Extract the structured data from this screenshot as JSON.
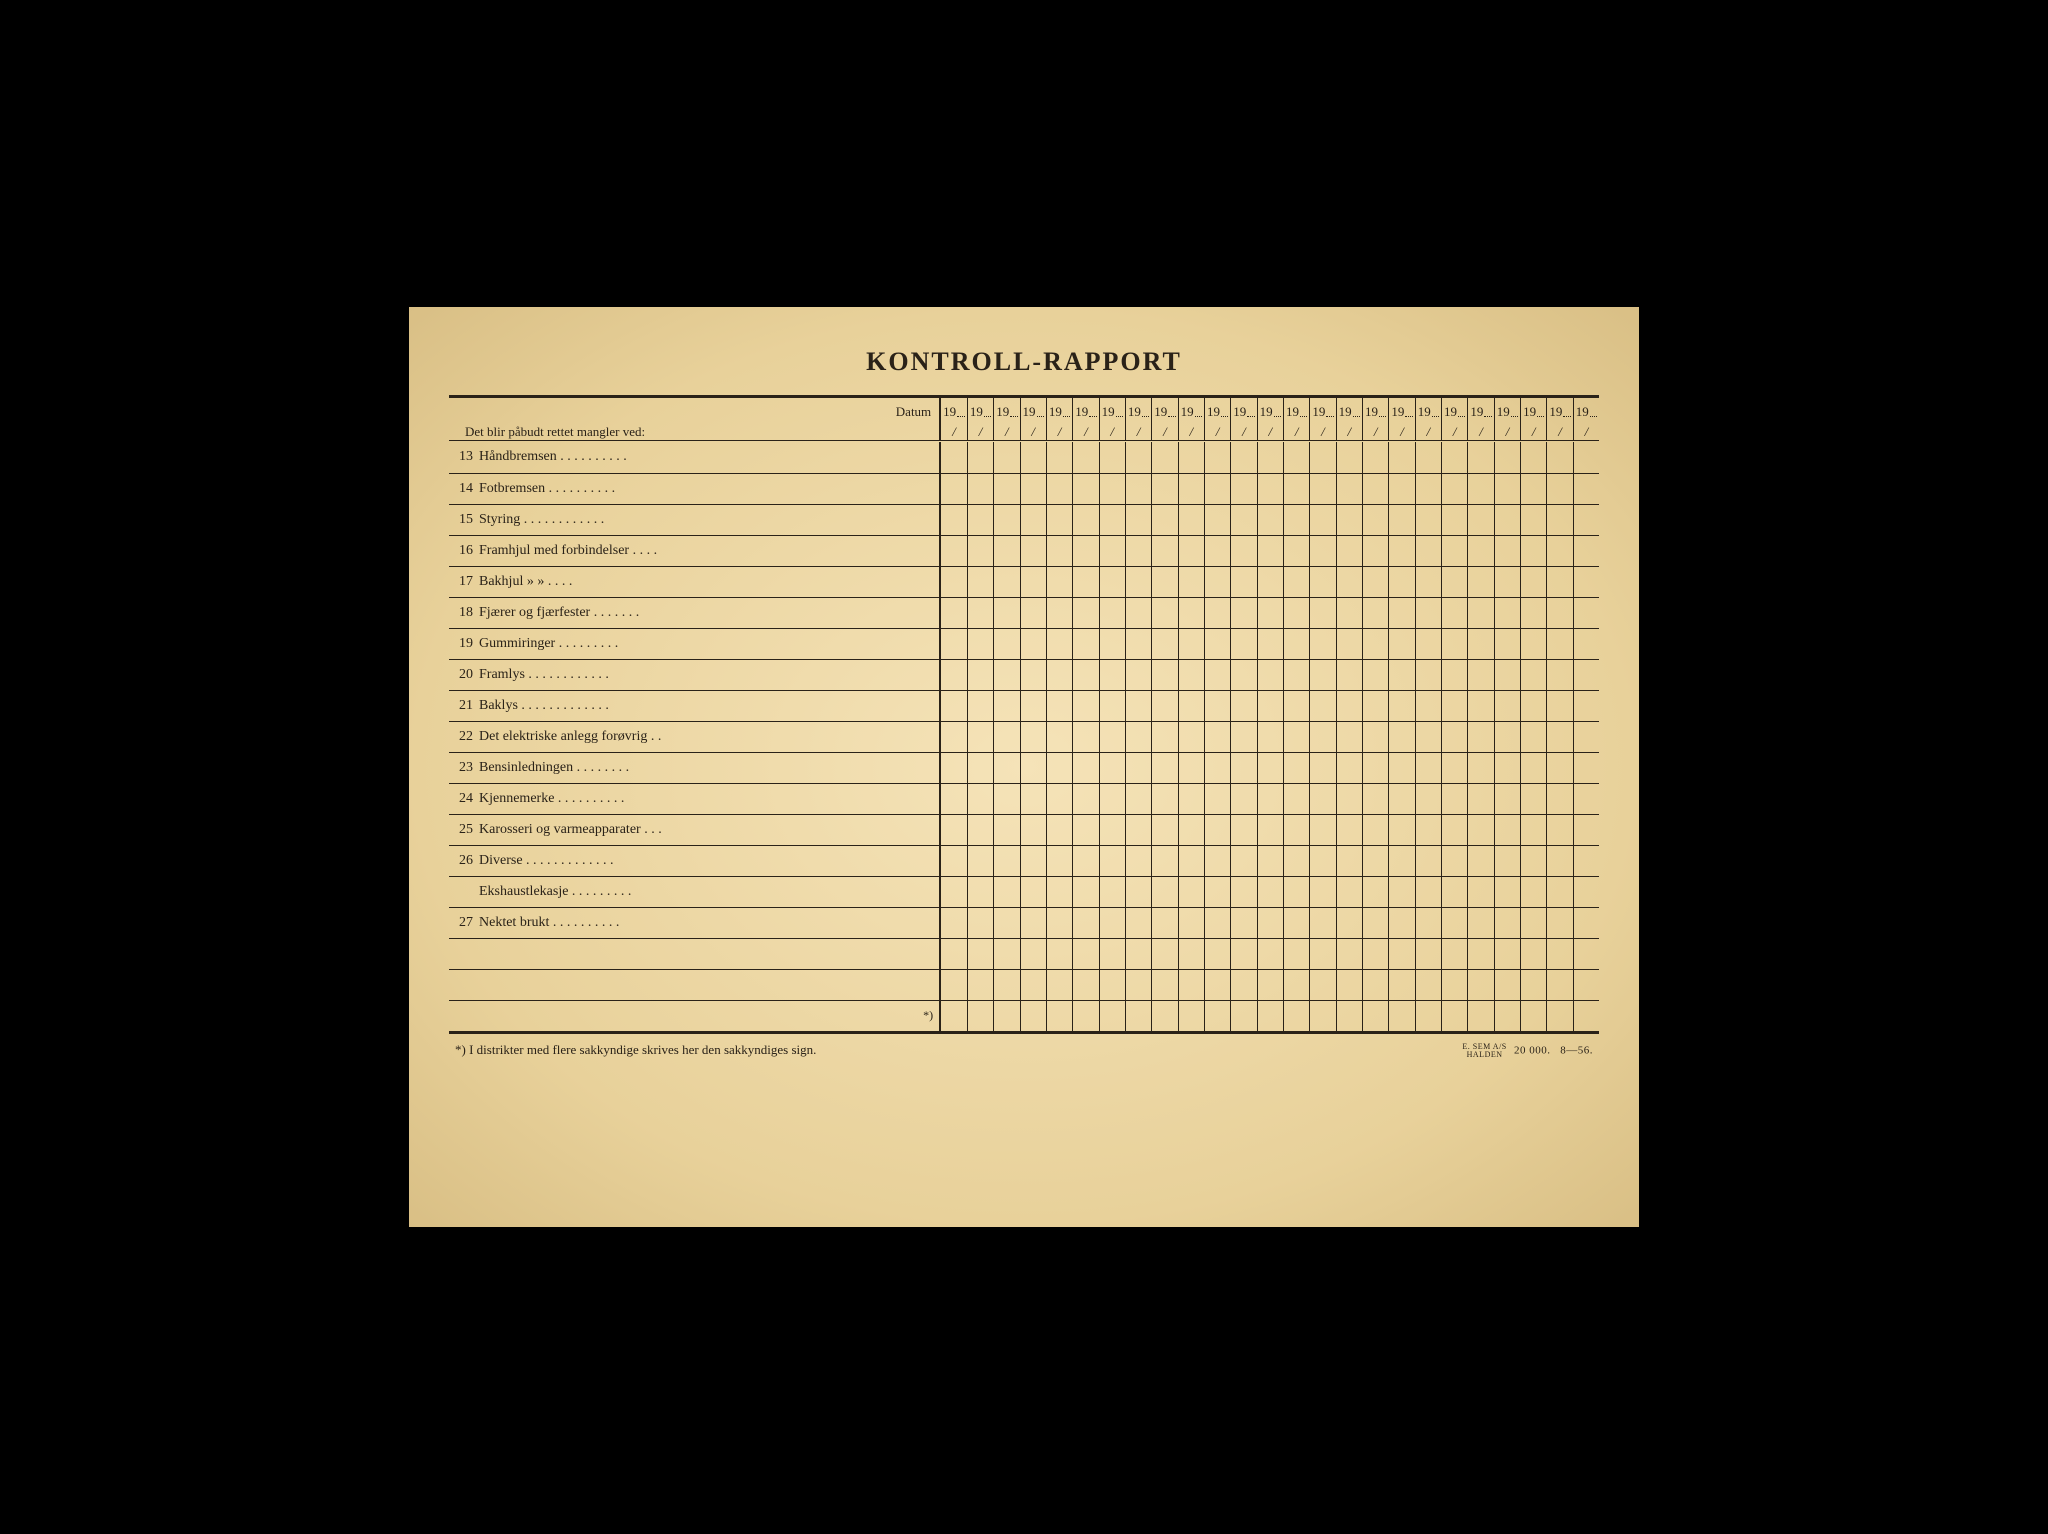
{
  "title": "KONTROLL-RAPPORT",
  "header": {
    "datum_label": "Datum",
    "year_prefix": "19",
    "sub_label": "Det blir påbudt rettet mangler ved:",
    "slash": "/",
    "num_date_cols": 25
  },
  "rows": [
    {
      "num": "13",
      "label": "Håndbremsen",
      "dots": 10
    },
    {
      "num": "14",
      "label": "Fotbremsen",
      "dots": 10
    },
    {
      "num": "15",
      "label": "Styring",
      "dots": 12
    },
    {
      "num": "16",
      "label": "Framhjul med forbindelser",
      "dots": 4
    },
    {
      "num": "17",
      "label": "Bakhjul      »           »",
      "dots": 4,
      "special": true
    },
    {
      "num": "18",
      "label": "Fjærer og fjærfester",
      "dots": 7
    },
    {
      "num": "19",
      "label": "Gummiringer",
      "dots": 9
    },
    {
      "num": "20",
      "label": "Framlys",
      "dots": 12
    },
    {
      "num": "21",
      "label": "Baklys",
      "dots": 13
    },
    {
      "num": "22",
      "label": "Det elektriske anlegg forøvrig",
      "dots": 2
    },
    {
      "num": "23",
      "label": "Bensinledningen",
      "dots": 8
    },
    {
      "num": "24",
      "label": "Kjennemerke",
      "dots": 10
    },
    {
      "num": "25",
      "label": "Karosseri og varmeapparater",
      "dots": 3
    },
    {
      "num": "26",
      "label": "Diverse",
      "dots": 13
    },
    {
      "num": "",
      "label": "Ekshaustlekasje",
      "dots": 9
    },
    {
      "num": "27",
      "label": "Nektet brukt",
      "dots": 10
    },
    {
      "num": "",
      "label": "",
      "dots": 0
    },
    {
      "num": "",
      "label": "",
      "dots": 0
    },
    {
      "num": "",
      "label": "",
      "dots": 0,
      "star": "*)"
    }
  ],
  "footer": {
    "note": "*)  I distrikter med flere sakkyndige skrives her den sakkyndiges sign.",
    "printer_top": "E. SEM A/S",
    "printer_bottom": "HALDEN",
    "print_run": "20 000.",
    "print_code": "8—56."
  },
  "colors": {
    "ink": "#2a2218",
    "paper_center": "#f5e3b8",
    "paper_edge": "#d9bf85"
  }
}
